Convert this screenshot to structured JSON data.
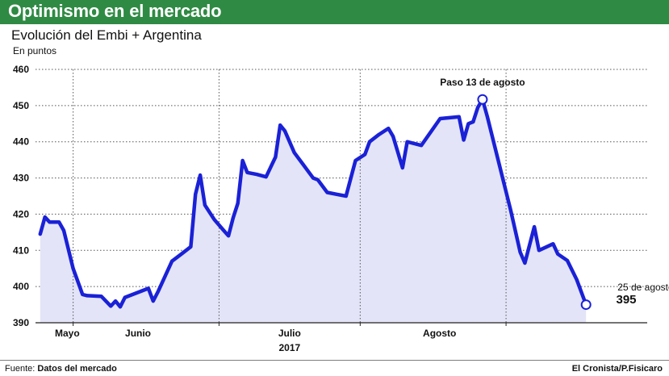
{
  "header": {
    "title": "Optimismo en el mercado"
  },
  "chart_data": {
    "type": "area",
    "title": "Evolución del Embi + Argentina",
    "ylabel": "En puntos",
    "xlabel": "2017",
    "ylim": [
      390,
      460
    ],
    "yticks": [
      "460",
      "450",
      "440",
      "430",
      "420",
      "410",
      "400",
      "390"
    ],
    "xticks": [
      "Mayo",
      "Junio",
      "Julio",
      "Agosto"
    ],
    "x_divisions": [
      "2017-05-01",
      "2017-06-01",
      "2017-07-01",
      "2017-08-01"
    ],
    "grid": true,
    "series": [
      {
        "color": "#1a21d6",
        "fill": "#e3e4f7",
        "points": [
          [
            "2017-04-24",
            414.5
          ],
          [
            "2017-04-25",
            419.2
          ],
          [
            "2017-04-26",
            417.8
          ],
          [
            "2017-04-27",
            417.8
          ],
          [
            "2017-04-28",
            417.8
          ],
          [
            "2017-04-29",
            415.5
          ],
          [
            "2017-05-01",
            405.0
          ],
          [
            "2017-05-03",
            397.8
          ],
          [
            "2017-05-04",
            397.5
          ],
          [
            "2017-05-07",
            397.3
          ],
          [
            "2017-05-09",
            394.6
          ],
          [
            "2017-05-10",
            396.0
          ],
          [
            "2017-05-11",
            394.4
          ],
          [
            "2017-05-12",
            397.0
          ],
          [
            "2017-05-15",
            398.5
          ],
          [
            "2017-05-17",
            399.5
          ],
          [
            "2017-05-18",
            396.0
          ],
          [
            "2017-05-19",
            398.5
          ],
          [
            "2017-05-22",
            407.0
          ],
          [
            "2017-05-24",
            409.0
          ],
          [
            "2017-05-26",
            411.0
          ],
          [
            "2017-05-27",
            425.5
          ],
          [
            "2017-05-28",
            430.8
          ],
          [
            "2017-05-29",
            422.5
          ],
          [
            "2017-05-31",
            418.5
          ],
          [
            "2017-06-02",
            415.5
          ],
          [
            "2017-06-03",
            414.0
          ],
          [
            "2017-06-04",
            419.0
          ],
          [
            "2017-06-05",
            423.0
          ],
          [
            "2017-06-06",
            434.8
          ],
          [
            "2017-06-07",
            431.5
          ],
          [
            "2017-06-09",
            431.0
          ],
          [
            "2017-06-11",
            430.3
          ],
          [
            "2017-06-13",
            435.8
          ],
          [
            "2017-06-14",
            444.6
          ],
          [
            "2017-06-15",
            443.0
          ],
          [
            "2017-06-17",
            437.0
          ],
          [
            "2017-06-19",
            433.5
          ],
          [
            "2017-06-21",
            430.0
          ],
          [
            "2017-06-22",
            429.5
          ],
          [
            "2017-06-24",
            426.0
          ],
          [
            "2017-06-26",
            425.5
          ],
          [
            "2017-06-28",
            425.0
          ],
          [
            "2017-06-30",
            434.8
          ],
          [
            "2017-07-02",
            436.5
          ],
          [
            "2017-07-03",
            440.0
          ],
          [
            "2017-07-05",
            442.0
          ],
          [
            "2017-07-07",
            443.7
          ],
          [
            "2017-07-08",
            441.5
          ],
          [
            "2017-07-10",
            432.8
          ],
          [
            "2017-07-11",
            440.0
          ],
          [
            "2017-07-14",
            439.0
          ],
          [
            "2017-07-18",
            446.4
          ],
          [
            "2017-07-22",
            446.9
          ],
          [
            "2017-07-23",
            440.5
          ],
          [
            "2017-07-24",
            445.0
          ],
          [
            "2017-07-25",
            445.5
          ],
          [
            "2017-07-26",
            449.5
          ],
          [
            "2017-07-27",
            451.7
          ],
          [
            "2017-07-28",
            447.0
          ],
          [
            "2017-08-02",
            421.0
          ],
          [
            "2017-08-04",
            409.5
          ],
          [
            "2017-08-05",
            406.5
          ],
          [
            "2017-08-07",
            416.5
          ],
          [
            "2017-08-08",
            410.0
          ],
          [
            "2017-08-11",
            411.8
          ],
          [
            "2017-08-12",
            409.0
          ],
          [
            "2017-08-14",
            407.2
          ],
          [
            "2017-08-16",
            402.0
          ],
          [
            "2017-08-18",
            395.0
          ]
        ]
      }
    ],
    "annotations": [
      {
        "text": "Paso 13 de agosto",
        "date": "2017-07-27",
        "value": 451.7
      },
      {
        "text": "25 de agosto",
        "value_text": "395",
        "date": "2017-08-18",
        "value": 395.0
      }
    ]
  },
  "footer": {
    "source_label": "Fuente:",
    "source_value": "Datos del mercado",
    "credit": "El Cronista/P.Fisicaro"
  }
}
